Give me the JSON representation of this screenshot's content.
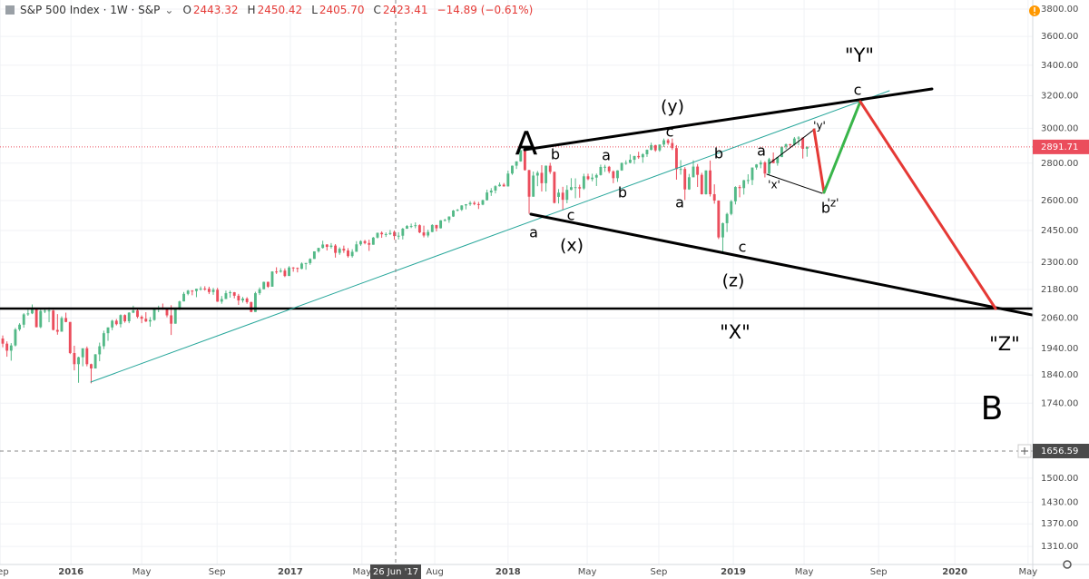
{
  "header": {
    "symbol": "S&P 500 Index · 1W · S&P",
    "fields": [
      {
        "label": "O",
        "value": "2443.32"
      },
      {
        "label": "H",
        "value": "2450.42"
      },
      {
        "label": "L",
        "value": "2405.70"
      },
      {
        "label": "C",
        "value": "2423.41"
      }
    ],
    "change": "−14.89 (−0.61%)"
  },
  "crosshair": {
    "date_label": "26 Jun '17",
    "price_label": "1656.59"
  },
  "annotations": [
    "A",
    "B",
    "\"Y\"",
    "\"X\"",
    "\"Z\"",
    "(y)",
    "(x)",
    "(z)",
    "b",
    "c",
    "a",
    "a",
    "b",
    "c",
    "b",
    "a",
    "c",
    "a",
    "b",
    "'x'",
    "'y'",
    "'z'",
    "c"
  ],
  "chart_data": {
    "type": "candlestick",
    "log_scale": true,
    "grid": true,
    "up_color": "#53b987",
    "down_color": "#eb4d5c",
    "ylim": [
      1264,
      3869
    ],
    "yticks": [
      {
        "value": 3800,
        "label": "3800.00"
      },
      {
        "value": 3600,
        "label": "3600.00"
      },
      {
        "value": 3400,
        "label": "3400.00"
      },
      {
        "value": 3200,
        "label": "3200.00"
      },
      {
        "value": 3000,
        "label": "3000.00"
      },
      {
        "value": 2800,
        "label": "2800.00"
      },
      {
        "value": 2600,
        "label": "2600.00"
      },
      {
        "value": 2450,
        "label": "2450.00"
      },
      {
        "value": 2300,
        "label": "2300.00"
      },
      {
        "value": 2180,
        "label": "2180.00"
      },
      {
        "value": 2060,
        "label": "2060.00"
      },
      {
        "value": 1940,
        "label": "1940.00"
      },
      {
        "value": 1840,
        "label": "1840.00"
      },
      {
        "value": 1740,
        "label": "1740.00"
      },
      {
        "value": 1500,
        "label": "1500.00"
      },
      {
        "value": 1430,
        "label": "1430.00"
      },
      {
        "value": 1370,
        "label": "1370.00"
      },
      {
        "value": 1310,
        "label": "1310.00"
      }
    ],
    "xlim": [
      -0.65,
      244.6
    ],
    "xticks": [
      {
        "value": -0.6,
        "label": "Sep"
      },
      {
        "value": 16.2,
        "label": "2016"
      },
      {
        "value": 33.0,
        "label": "May"
      },
      {
        "value": 50.9,
        "label": "Sep"
      },
      {
        "value": 68.3,
        "label": "2017"
      },
      {
        "value": 85.3,
        "label": "May"
      },
      {
        "value": 102.6,
        "label": "Aug"
      },
      {
        "value": 120.0,
        "label": "2018"
      },
      {
        "value": 138.8,
        "label": "May"
      },
      {
        "value": 155.8,
        "label": "Sep"
      },
      {
        "value": 173.5,
        "label": "2019"
      },
      {
        "value": 190.3,
        "label": "May"
      },
      {
        "value": 208.0,
        "label": "Sep"
      },
      {
        "value": 226.1,
        "label": "2020"
      },
      {
        "value": 243.5,
        "label": "May"
      }
    ],
    "ohlc": [
      [
        1978,
        1990,
        1944,
        1958
      ],
      [
        1958,
        1967,
        1908,
        1931
      ],
      [
        1931,
        1960,
        1893,
        1951
      ],
      [
        1951,
        2020,
        1947,
        2014
      ],
      [
        2014,
        2039,
        2008,
        2033
      ],
      [
        2033,
        2080,
        2021,
        2075
      ],
      [
        2075,
        2094,
        2069,
        2079
      ],
      [
        2079,
        2116,
        2076,
        2099
      ],
      [
        2099,
        2100,
        2022,
        2023
      ],
      [
        2023,
        2094,
        2019,
        2089
      ],
      [
        2089,
        2096,
        2080,
        2090
      ],
      [
        2090,
        2104,
        2043,
        2091
      ],
      [
        2091,
        2093,
        2010,
        2012
      ],
      [
        2012,
        2076,
        1993,
        2005
      ],
      [
        2005,
        2067,
        2005,
        2060
      ],
      [
        2060,
        2082,
        2043,
        2044
      ],
      [
        2044,
        2044,
        1918,
        1922
      ],
      [
        1922,
        1950,
        1857,
        1880
      ],
      [
        1880,
        1908,
        1812,
        1906
      ],
      [
        1906,
        1940,
        1872,
        1940
      ],
      [
        1940,
        1947,
        1872,
        1880
      ],
      [
        1880,
        1882,
        1810,
        1864
      ],
      [
        1864,
        1918,
        1864,
        1917
      ],
      [
        1917,
        1962,
        1891,
        1948
      ],
      [
        1948,
        2009,
        1937,
        1999
      ],
      [
        1999,
        2022,
        1969,
        2022
      ],
      [
        2022,
        2053,
        2011,
        2049
      ],
      [
        2049,
        2056,
        2030,
        2035
      ],
      [
        2035,
        2075,
        2022,
        2072
      ],
      [
        2072,
        2075,
        2041,
        2047
      ],
      [
        2047,
        2084,
        2039,
        2082
      ],
      [
        2082,
        2111,
        2080,
        2091
      ],
      [
        2091,
        2100,
        2059,
        2065
      ],
      [
        2065,
        2071,
        2039,
        2057
      ],
      [
        2057,
        2084,
        2044,
        2046
      ],
      [
        2046,
        2064,
        2025,
        2052
      ],
      [
        2052,
        2100,
        2049,
        2099
      ],
      [
        2099,
        2111,
        2084,
        2099
      ],
      [
        2099,
        2120,
        2094,
        2096
      ],
      [
        2096,
        2099,
        2063,
        2071
      ],
      [
        2071,
        2113,
        1992,
        2037
      ],
      [
        2037,
        2103,
        2037,
        2102
      ],
      [
        2102,
        2132,
        2093,
        2129
      ],
      [
        2129,
        2169,
        2129,
        2161
      ],
      [
        2161,
        2178,
        2155,
        2175
      ],
      [
        2175,
        2177,
        2155,
        2173
      ],
      [
        2173,
        2183,
        2147,
        2183
      ],
      [
        2183,
        2193,
        2175,
        2184
      ],
      [
        2184,
        2194,
        2175,
        2183
      ],
      [
        2183,
        2192,
        2160,
        2169
      ],
      [
        2169,
        2187,
        2157,
        2179
      ],
      [
        2179,
        2187,
        2127,
        2128
      ],
      [
        2128,
        2152,
        2119,
        2139
      ],
      [
        2139,
        2175,
        2139,
        2164
      ],
      [
        2164,
        2175,
        2145,
        2168
      ],
      [
        2168,
        2169,
        2142,
        2153
      ],
      [
        2153,
        2161,
        2114,
        2133
      ],
      [
        2133,
        2148,
        2124,
        2141
      ],
      [
        2141,
        2147,
        2119,
        2126
      ],
      [
        2126,
        2128,
        2084,
        2085
      ],
      [
        2085,
        2170,
        2085,
        2164
      ],
      [
        2164,
        2189,
        2156,
        2181
      ],
      [
        2181,
        2214,
        2181,
        2213
      ],
      [
        2213,
        2214,
        2187,
        2192
      ],
      [
        2192,
        2260,
        2192,
        2259
      ],
      [
        2259,
        2278,
        2248,
        2258
      ],
      [
        2258,
        2274,
        2254,
        2263
      ],
      [
        2263,
        2273,
        2234,
        2239
      ],
      [
        2239,
        2283,
        2239,
        2277
      ],
      [
        2277,
        2279,
        2258,
        2275
      ],
      [
        2275,
        2277,
        2255,
        2271
      ],
      [
        2271,
        2300,
        2269,
        2295
      ],
      [
        2295,
        2298,
        2267,
        2297
      ],
      [
        2297,
        2319,
        2289,
        2316
      ],
      [
        2316,
        2351,
        2316,
        2351
      ],
      [
        2351,
        2368,
        2345,
        2367
      ],
      [
        2367,
        2401,
        2364,
        2383
      ],
      [
        2383,
        2385,
        2355,
        2372
      ],
      [
        2372,
        2390,
        2364,
        2378
      ],
      [
        2378,
        2385,
        2322,
        2344
      ],
      [
        2344,
        2370,
        2335,
        2363
      ],
      [
        2363,
        2378,
        2344,
        2355
      ],
      [
        2355,
        2366,
        2322,
        2329
      ],
      [
        2329,
        2361,
        2322,
        2349
      ],
      [
        2349,
        2399,
        2349,
        2384
      ],
      [
        2384,
        2403,
        2377,
        2399
      ],
      [
        2399,
        2405,
        2384,
        2390
      ],
      [
        2390,
        2406,
        2353,
        2382
      ],
      [
        2382,
        2419,
        2382,
        2416
      ],
      [
        2416,
        2440,
        2412,
        2439
      ],
      [
        2439,
        2446,
        2415,
        2432
      ],
      [
        2432,
        2441,
        2419,
        2433
      ],
      [
        2433,
        2453,
        2428,
        2438
      ],
      [
        2443.32,
        2450.42,
        2405.7,
        2423.41
      ],
      [
        2423,
        2442,
        2407,
        2425
      ],
      [
        2425,
        2463,
        2407,
        2459
      ],
      [
        2459,
        2477,
        2458,
        2472
      ],
      [
        2472,
        2484,
        2462,
        2472
      ],
      [
        2472,
        2490,
        2461,
        2476
      ],
      [
        2476,
        2480,
        2437,
        2441
      ],
      [
        2441,
        2474,
        2417,
        2426
      ],
      [
        2426,
        2454,
        2417,
        2443
      ],
      [
        2443,
        2481,
        2442,
        2477
      ],
      [
        2477,
        2478,
        2446,
        2461
      ],
      [
        2461,
        2501,
        2460,
        2500
      ],
      [
        2500,
        2508,
        2495,
        2502
      ],
      [
        2502,
        2520,
        2488,
        2519
      ],
      [
        2519,
        2552,
        2517,
        2549
      ],
      [
        2549,
        2557,
        2545,
        2553
      ],
      [
        2553,
        2576,
        2547,
        2575
      ],
      [
        2575,
        2582,
        2555,
        2581
      ],
      [
        2581,
        2597,
        2573,
        2588
      ],
      [
        2588,
        2597,
        2576,
        2582
      ],
      [
        2582,
        2593,
        2557,
        2579
      ],
      [
        2579,
        2605,
        2576,
        2602
      ],
      [
        2602,
        2657,
        2600,
        2642
      ],
      [
        2642,
        2665,
        2624,
        2652
      ],
      [
        2652,
        2680,
        2637,
        2675
      ],
      [
        2675,
        2695,
        2673,
        2683
      ],
      [
        2683,
        2692,
        2673,
        2674
      ],
      [
        2674,
        2759,
        2673,
        2743
      ],
      [
        2743,
        2787,
        2736,
        2786
      ],
      [
        2786,
        2810,
        2768,
        2810
      ],
      [
        2810,
        2873,
        2808,
        2873
      ],
      [
        2873,
        2873,
        2759,
        2762
      ],
      [
        2762,
        2763,
        2533,
        2620
      ],
      [
        2620,
        2754,
        2620,
        2732
      ],
      [
        2732,
        2757,
        2675,
        2747
      ],
      [
        2747,
        2789,
        2647,
        2691
      ],
      [
        2691,
        2787,
        2647,
        2786
      ],
      [
        2786,
        2802,
        2741,
        2752
      ],
      [
        2752,
        2754,
        2585,
        2588
      ],
      [
        2619,
        2660,
        2585,
        2641
      ],
      [
        2641,
        2672,
        2553,
        2604
      ],
      [
        2604,
        2680,
        2586,
        2656
      ],
      [
        2656,
        2718,
        2653,
        2670
      ],
      [
        2670,
        2717,
        2612,
        2670
      ],
      [
        2670,
        2683,
        2615,
        2663
      ],
      [
        2663,
        2742,
        2656,
        2728
      ],
      [
        2728,
        2742,
        2707,
        2713
      ],
      [
        2713,
        2742,
        2701,
        2721
      ],
      [
        2721,
        2743,
        2676,
        2735
      ],
      [
        2735,
        2792,
        2732,
        2779
      ],
      [
        2779,
        2791,
        2752,
        2780
      ],
      [
        2780,
        2785,
        2744,
        2755
      ],
      [
        2755,
        2760,
        2691,
        2718
      ],
      [
        2718,
        2761,
        2698,
        2760
      ],
      [
        2760,
        2804,
        2758,
        2801
      ],
      [
        2801,
        2816,
        2791,
        2802
      ],
      [
        2802,
        2849,
        2799,
        2819
      ],
      [
        2819,
        2841,
        2796,
        2840
      ],
      [
        2840,
        2864,
        2824,
        2833
      ],
      [
        2833,
        2856,
        2802,
        2850
      ],
      [
        2850,
        2877,
        2835,
        2875
      ],
      [
        2875,
        2916,
        2872,
        2902
      ],
      [
        2902,
        2904,
        2864,
        2872
      ],
      [
        2872,
        2906,
        2864,
        2905
      ],
      [
        2905,
        2940,
        2891,
        2930
      ],
      [
        2930,
        2939,
        2903,
        2914
      ],
      [
        2914,
        2940,
        2874,
        2885
      ],
      [
        2885,
        2902,
        2710,
        2767
      ],
      [
        2767,
        2817,
        2737,
        2768
      ],
      [
        2768,
        2778,
        2603,
        2658
      ],
      [
        2658,
        2741,
        2656,
        2723
      ],
      [
        2723,
        2816,
        2722,
        2781
      ],
      [
        2781,
        2795,
        2671,
        2736
      ],
      [
        2736,
        2747,
        2631,
        2633
      ],
      [
        2633,
        2760,
        2631,
        2760
      ],
      [
        2760,
        2815,
        2621,
        2633
      ],
      [
        2633,
        2685,
        2584,
        2600
      ],
      [
        2600,
        2601,
        2409,
        2417
      ],
      [
        2417,
        2489,
        2346,
        2486
      ],
      [
        2486,
        2538,
        2443,
        2532
      ],
      [
        2532,
        2603,
        2525,
        2596
      ],
      [
        2596,
        2675,
        2580,
        2671
      ],
      [
        2671,
        2681,
        2617,
        2665
      ],
      [
        2665,
        2709,
        2631,
        2707
      ],
      [
        2707,
        2739,
        2687,
        2708
      ],
      [
        2708,
        2776,
        2681,
        2776
      ],
      [
        2776,
        2795,
        2764,
        2793
      ],
      [
        2793,
        2816,
        2772,
        2804
      ],
      [
        2804,
        2811,
        2722,
        2743
      ],
      [
        2743,
        2830,
        2732,
        2822
      ],
      [
        2822,
        2860,
        2800,
        2800
      ],
      [
        2800,
        2835,
        2786,
        2834
      ],
      [
        2834,
        2894,
        2834,
        2893
      ],
      [
        2893,
        2911,
        2878,
        2907
      ],
      [
        2907,
        2910,
        2892,
        2905
      ],
      [
        2905,
        2949,
        2898,
        2940
      ],
      [
        2940,
        2954,
        2901,
        2946
      ],
      [
        2946,
        2947,
        2826,
        2881
      ],
      [
        2881,
        2895,
        2836,
        2891.71
      ]
    ]
  }
}
